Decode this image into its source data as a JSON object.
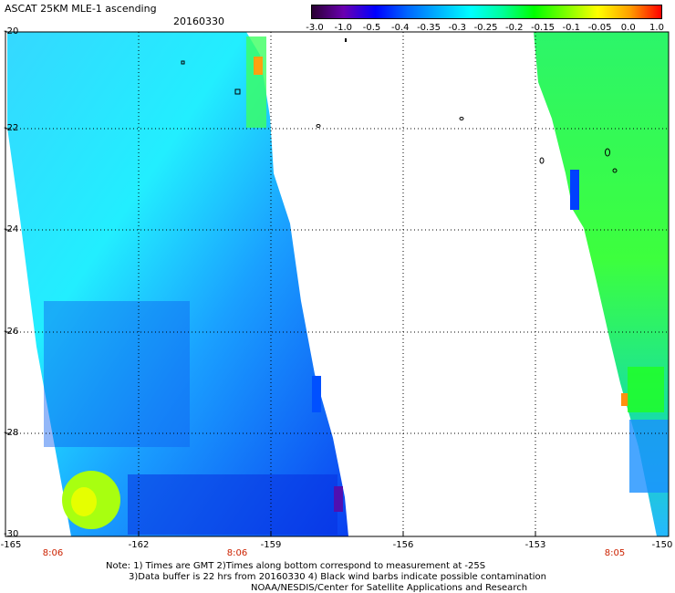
{
  "header": {
    "title": "ASCAT 25KM MLE-1 ascending",
    "date": "20160330"
  },
  "colorbar": {
    "labels": [
      "-3.0",
      "-1.0",
      "-0.5",
      "-0.4",
      "-0.35",
      "-0.3",
      "-0.25",
      "-0.2",
      "-0.15",
      "-0.1",
      "-0.05",
      "0.0",
      "1.0"
    ],
    "colors": [
      "#2a0033",
      "#6a00b0",
      "#0000ff",
      "#0066ff",
      "#00b4ff",
      "#00ffff",
      "#00ff9a",
      "#00ff00",
      "#7dff00",
      "#ffff00",
      "#ffa000",
      "#ff0000"
    ]
  },
  "axes": {
    "lat_labels": [
      "-20",
      "-22",
      "-24",
      "-26",
      "-28",
      "-30"
    ],
    "lon_labels": [
      "-165",
      "-162",
      "-159",
      "-156",
      "-153",
      "-150"
    ],
    "times": [
      "8:06",
      "8:06",
      "8:05"
    ]
  },
  "footer": {
    "note1": "Note: 1) Times are GMT 2)Times along bottom correspond to measurement at -25S",
    "note2": "3)Data buffer is 22 hrs from 20160330 4) Black wind barbs indicate possible contamination",
    "credit": "NOAA/NESDIS/Center for Satellite Applications and Research"
  }
}
